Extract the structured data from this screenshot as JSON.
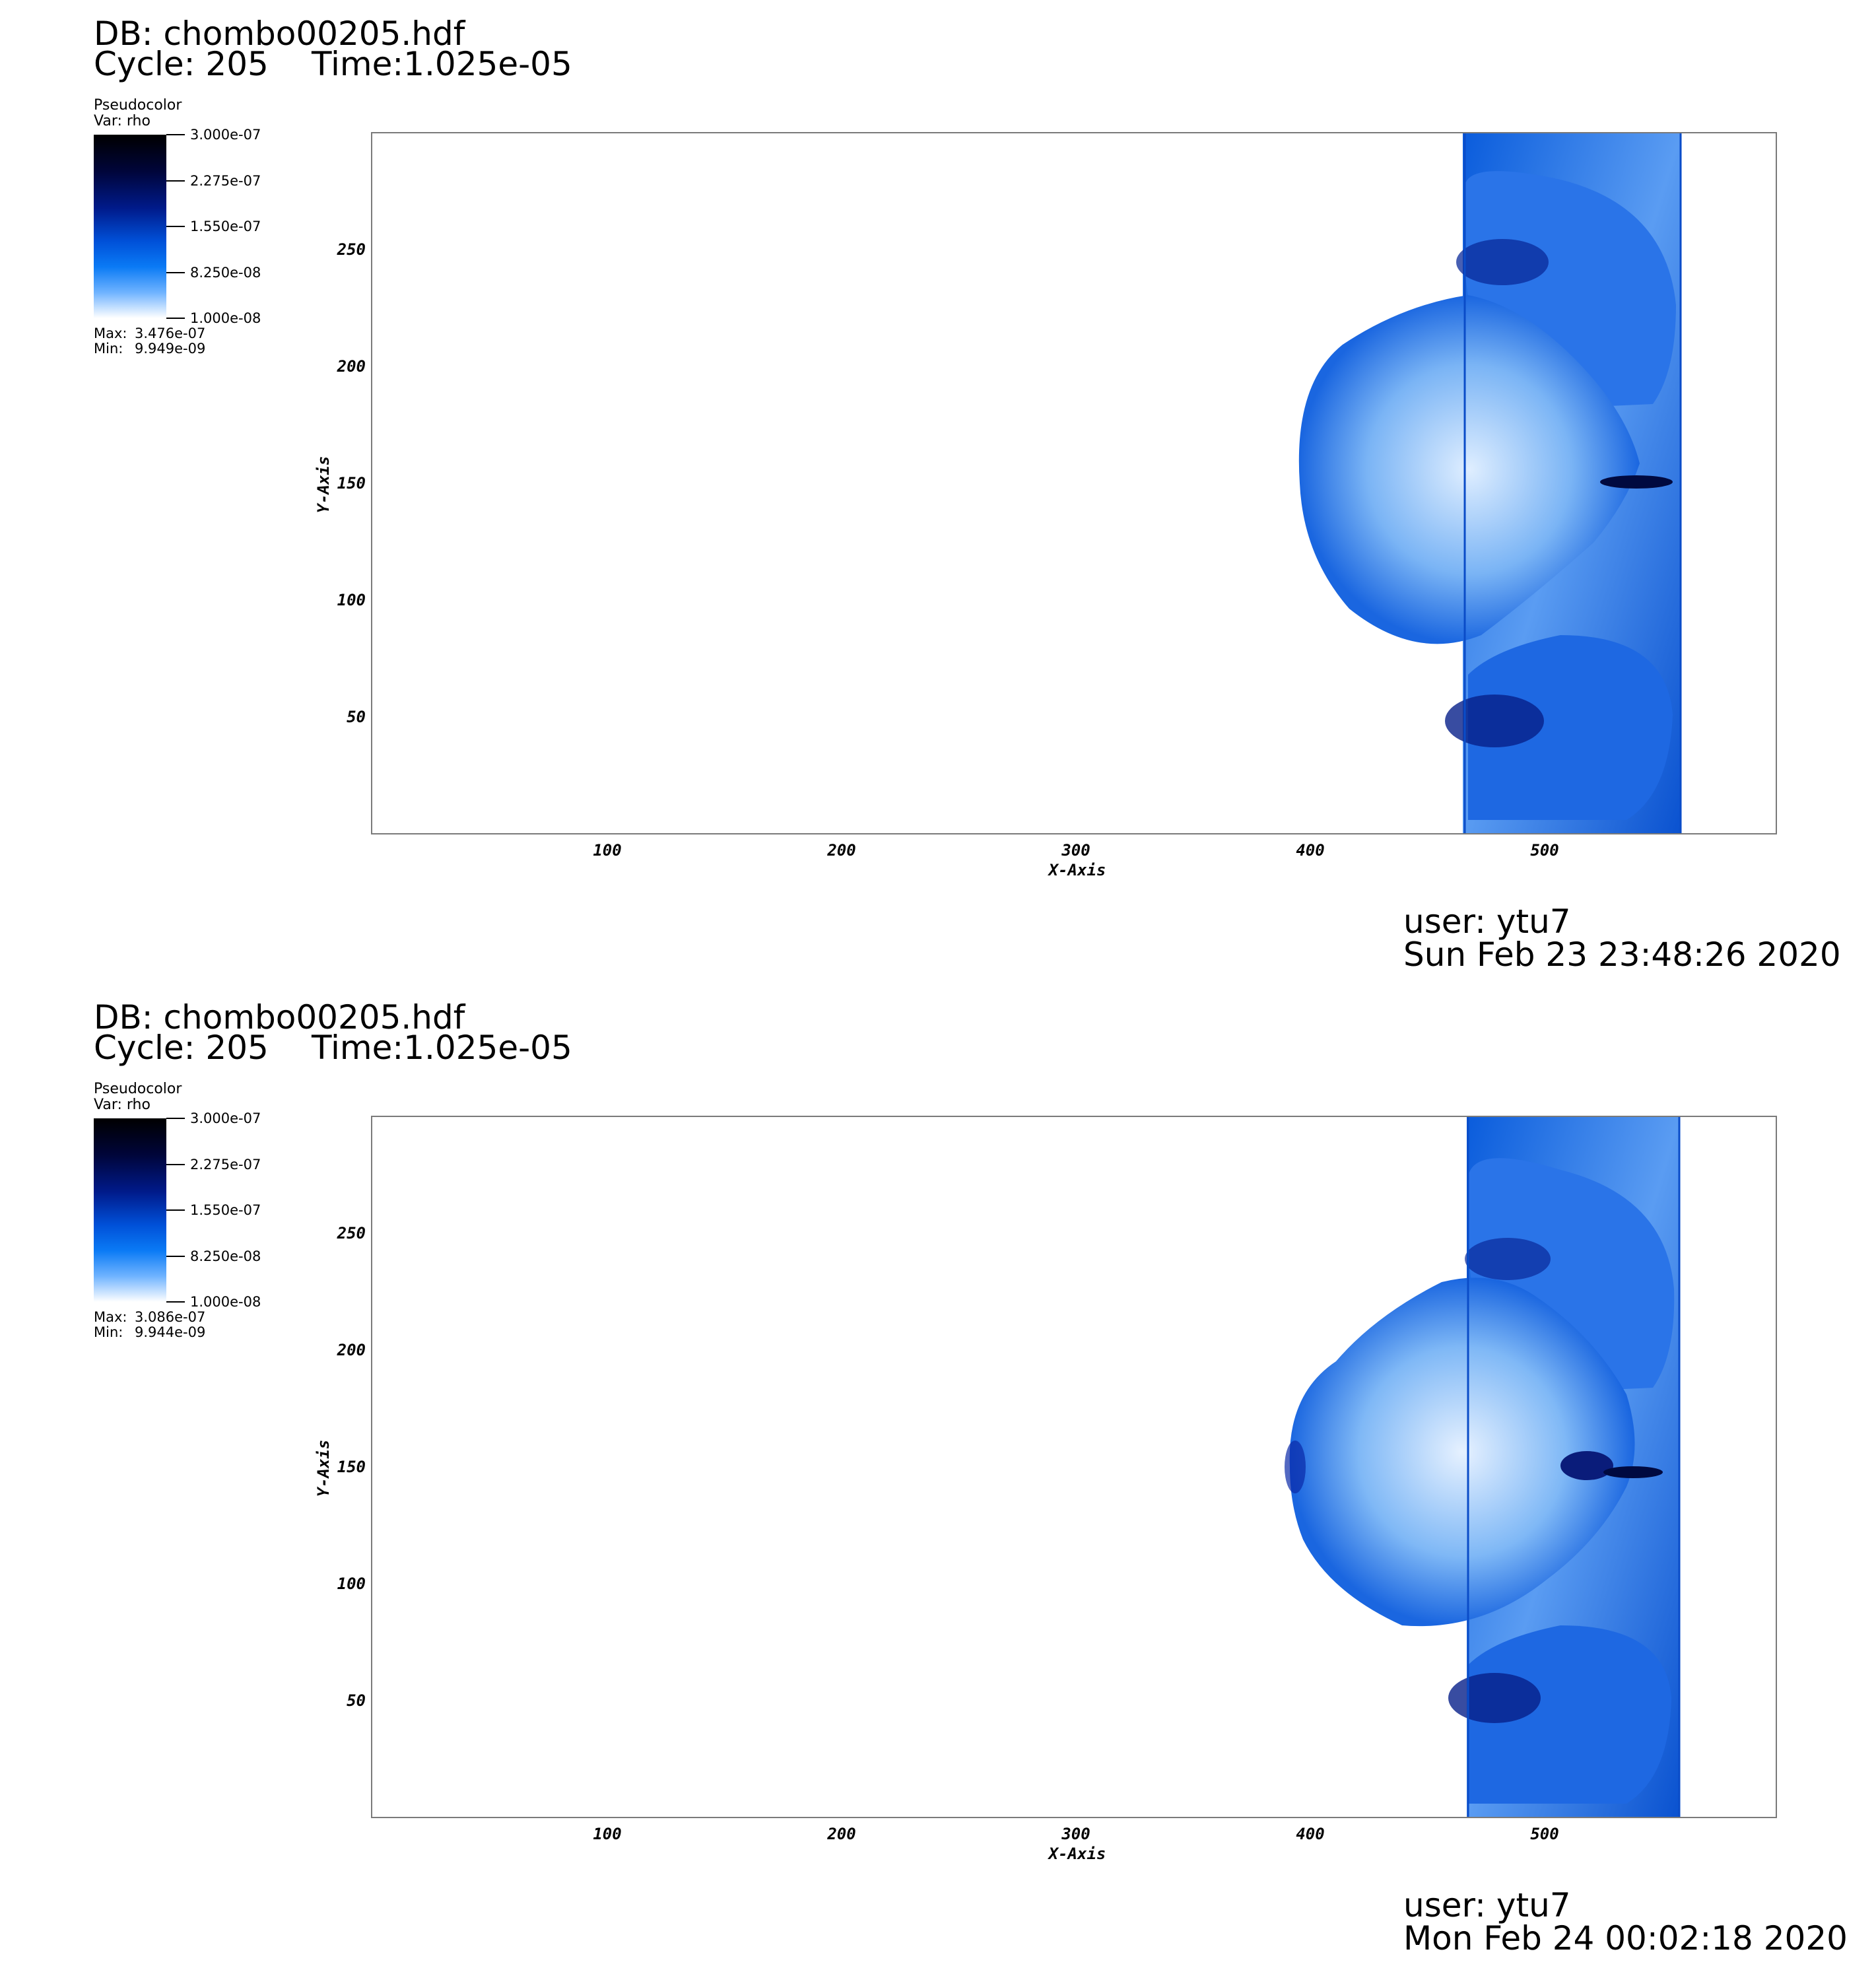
{
  "panels": [
    {
      "db": "DB: chombo00205.hdf",
      "cycle": "Cycle: 205",
      "time": "Time:1.025e-05",
      "legend": {
        "title": "Pseudocolor",
        "var": "Var: rho",
        "ticks": [
          "3.000e-07",
          "2.275e-07",
          "1.550e-07",
          "8.250e-08",
          "1.000e-08"
        ],
        "max_label": "Max:",
        "max_value": "3.476e-07",
        "min_label": "Min:",
        "min_value": "9.949e-09"
      },
      "y_ticks": [
        "250",
        "200",
        "150",
        "100",
        "50"
      ],
      "x_ticks": [
        "100",
        "200",
        "300",
        "400",
        "500"
      ],
      "x_axis_title": "X-Axis",
      "y_axis_title": "Y-Axis",
      "user": "user: ytu7",
      "date": "Sun Feb 23 23:48:26 2020"
    },
    {
      "db": "DB: chombo00205.hdf",
      "cycle": "Cycle: 205",
      "time": "Time:1.025e-05",
      "legend": {
        "title": "Pseudocolor",
        "var": "Var: rho",
        "ticks": [
          "3.000e-07",
          "2.275e-07",
          "1.550e-07",
          "8.250e-08",
          "1.000e-08"
        ],
        "max_label": "Max:",
        "max_value": "3.086e-07",
        "min_label": "Min:",
        "min_value": "9.944e-09"
      },
      "y_ticks": [
        "250",
        "200",
        "150",
        "100",
        "50"
      ],
      "x_ticks": [
        "100",
        "200",
        "300",
        "400",
        "500"
      ],
      "x_axis_title": "X-Axis",
      "y_axis_title": "Y-Axis",
      "user": "user: ytu7",
      "date": "Mon Feb 24 00:02:18 2020"
    }
  ],
  "colors": {
    "colormap_dark": "#000000",
    "colormap_mid": "#0050d8",
    "colormap_light": "#ffffff",
    "axis_frame": "#7a7a7a"
  }
}
